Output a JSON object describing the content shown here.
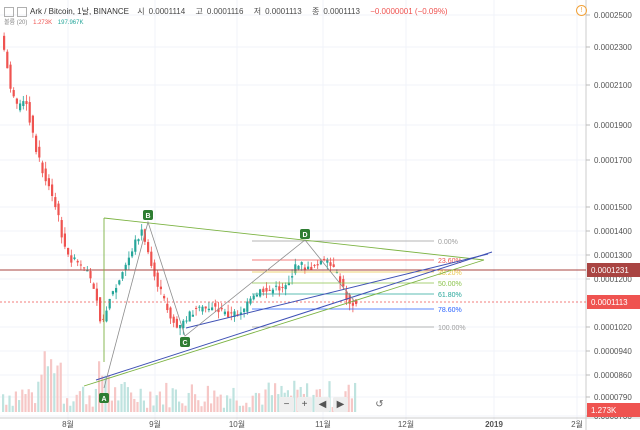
{
  "header": {
    "symbol": "Ark / Bitcoin, 1날, BINANCE",
    "open_label": "시",
    "open": "0.0001114",
    "high_label": "고",
    "high": "0.0001116",
    "low_label": "저",
    "low": "0.0001113",
    "close_label": "종",
    "close": "0.0001113",
    "change": "−0.0000001 (−0.09%)",
    "volume_label": "볼륨 (20)",
    "volume_value": "1.273K",
    "volume_ma": "197.967K",
    "alert_icon": "!"
  },
  "controls": {
    "minus": "−",
    "plus": "+",
    "left": "◀",
    "right": "▶",
    "reset": "↺"
  },
  "chart_data": {
    "type": "candlestick",
    "y_ticks": [
      "0.0002500",
      "0.0002300",
      "0.0002100",
      "0.0001900",
      "0.0001700",
      "0.0001500",
      "0.0001400",
      "0.0001300",
      "0.0001200",
      "0.0001020",
      "0.0000940",
      "0.0000860",
      "0.0000790",
      "0.0000700"
    ],
    "x_ticks": [
      "8월",
      "9월",
      "10월",
      "11월",
      "12월",
      "2019",
      "2월"
    ],
    "last_price_label": "0.0001113",
    "resistance_label": "0.0001231",
    "volume_axis_label": "1.273K",
    "fib_levels": [
      {
        "label": "0.00%",
        "color": "#9e9e9e"
      },
      {
        "label": "23.60%",
        "color": "#ef5350"
      },
      {
        "label": "38.20%",
        "color": "#e8c547"
      },
      {
        "label": "50.00%",
        "color": "#8bc34a"
      },
      {
        "label": "61.80%",
        "color": "#26a69a"
      },
      {
        "label": "78.60%",
        "color": "#2962ff"
      },
      {
        "label": "100.00%",
        "color": "#9e9e9e"
      }
    ],
    "pattern_points": [
      "A",
      "B",
      "C",
      "D"
    ],
    "colors": {
      "up": "#26a69a",
      "down": "#ef5350",
      "trend_blue": "#3f51b5",
      "triangle": "#7cb342",
      "resistance": "#a94442"
    }
  }
}
